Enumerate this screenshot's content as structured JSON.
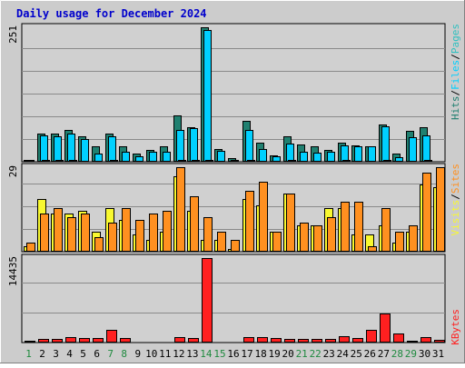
{
  "colors": {
    "background": "#cccccc",
    "plot_background": "#d0d0d0",
    "grid": "#8a8a8a",
    "title": "#0000cc",
    "hits": "#208070",
    "files": "#00d0ff",
    "pages": "#30c0c0",
    "visits": "#f8f830",
    "sites": "#ff9020",
    "kbytes": "#ff2020",
    "weekend_day": "#1f8a3f",
    "weekday": "#000000"
  },
  "chart_data": {
    "type": "bar",
    "title": "Daily usage for December 2024",
    "categories": [
      "1",
      "2",
      "3",
      "4",
      "5",
      "6",
      "7",
      "8",
      "9",
      "10",
      "11",
      "12",
      "13",
      "14",
      "15",
      "16",
      "17",
      "18",
      "19",
      "20",
      "21",
      "22",
      "23",
      "24",
      "25",
      "26",
      "27",
      "28",
      "29",
      "30",
      "31"
    ],
    "weekend_days": [
      1,
      7,
      8,
      14,
      15,
      21,
      22,
      28,
      29
    ],
    "legend": {
      "top": [
        {
          "text": "Hits",
          "color_key": "hits"
        },
        {
          "text": "/",
          "color_key": "weekday"
        },
        {
          "text": "Files",
          "color_key": "files"
        },
        {
          "text": "/",
          "color_key": "weekday"
        },
        {
          "text": "Pages",
          "color_key": "pages"
        }
      ],
      "middle": [
        {
          "text": "Visits",
          "color_key": "visits"
        },
        {
          "text": "/",
          "color_key": "weekday"
        },
        {
          "text": "Sites",
          "color_key": "sites"
        }
      ],
      "bottom": [
        {
          "text": "KBytes",
          "color_key": "kbytes"
        }
      ]
    },
    "panels": [
      {
        "id": "hits",
        "max_label": "251",
        "ylim": [
          0,
          251
        ],
        "series": [
          {
            "name": "Hits",
            "color_key": "hits",
            "values": [
              4,
              53,
              53,
              59,
              48,
              29,
              53,
              29,
              15,
              22,
              28,
              86,
              65,
              251,
              23,
              6,
              76,
              36,
              12,
              48,
              33,
              28,
              22,
              35,
              30,
              29,
              69,
              16,
              58,
              64,
              0
            ]
          },
          {
            "name": "Files",
            "color_key": "files",
            "values": [
              4,
              50,
              48,
              53,
              43,
              15,
              48,
              19,
              10,
              18,
              18,
              60,
              62,
              246,
              20,
              4,
              60,
              24,
              10,
              34,
              18,
              17,
              18,
              30,
              29,
              29,
              66,
              8,
              45,
              50,
              0
            ]
          },
          {
            "name": "Pages",
            "color_key": "pages",
            "values": [
              2,
              3,
              3,
              3,
              2,
              2,
              3,
              2,
              2,
              2,
              2,
              3,
              3,
              3,
              2,
              2,
              3,
              2,
              2,
              3,
              2,
              2,
              2,
              3,
              2,
              2,
              3,
              2,
              2,
              3,
              0
            ]
          }
        ]
      },
      {
        "id": "visits",
        "max_label": "29",
        "ylim": [
          0,
          29
        ],
        "series": [
          {
            "name": "Visits",
            "color_key": "visits",
            "values": [
              2,
              18,
              13,
              13,
              14,
              7,
              15,
              11,
              6,
              4,
              7,
              26,
              14,
              4,
              4,
              1,
              18,
              16,
              7,
              20,
              9,
              9,
              15,
              15,
              6,
              6,
              9,
              3,
              7,
              23,
              22
            ]
          },
          {
            "name": "Sites",
            "color_key": "sites",
            "values": [
              3,
              13,
              15,
              12,
              13,
              5,
              10,
              15,
              11,
              13,
              14,
              29,
              19,
              12,
              7,
              4,
              21,
              24,
              7,
              20,
              10,
              9,
              12,
              17,
              17,
              2,
              15,
              7,
              9,
              27,
              29
            ]
          }
        ]
      },
      {
        "id": "kbytes",
        "max_label": "14435",
        "ylim": [
          0,
          14435
        ],
        "series": [
          {
            "name": "KBytes",
            "color_key": "kbytes",
            "values": [
              250,
              650,
              650,
              1000,
              750,
              700,
              2100,
              800,
              100,
              100,
              100,
              1000,
              700,
              14435,
              150,
              150,
              900,
              900,
              800,
              550,
              550,
              550,
              550,
              1050,
              700,
              2100,
              5000,
              1500,
              300,
              950,
              500
            ]
          }
        ]
      }
    ]
  }
}
